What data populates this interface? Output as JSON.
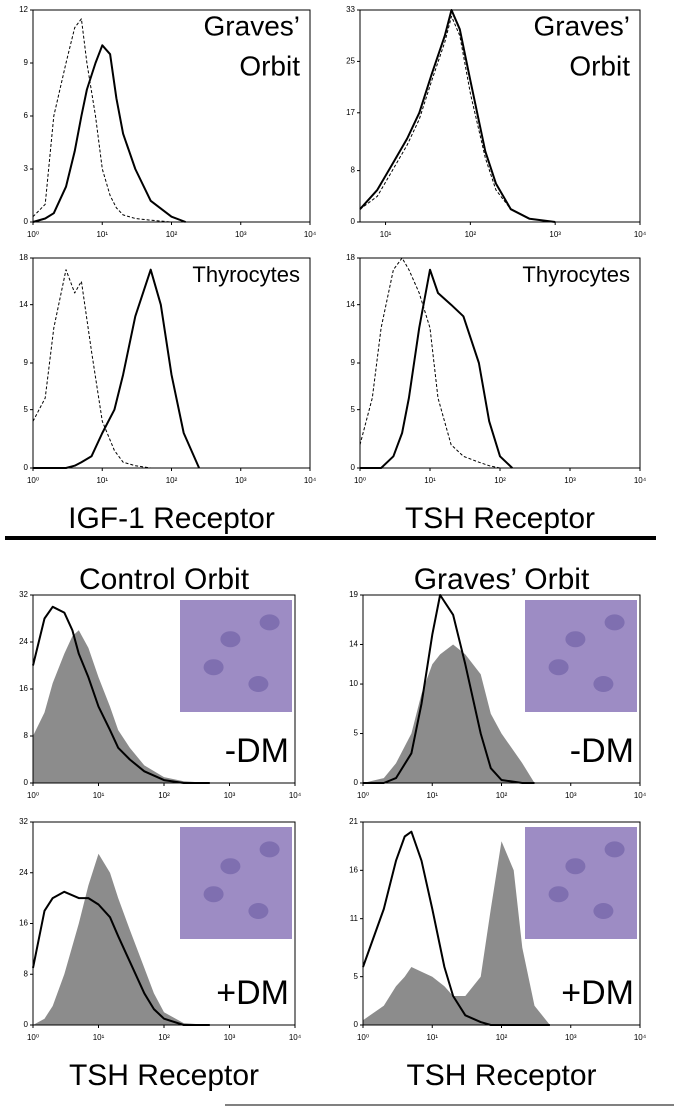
{
  "chart_data": [
    {
      "type": "line",
      "annotation": [
        "Graves’",
        "Orbit"
      ],
      "annotation_position": "top-right",
      "xlim": [
        1,
        10000
      ],
      "xscale": "log",
      "xticks": [
        {
          "value": 1,
          "label": "10⁰"
        },
        {
          "value": 10,
          "label": "10¹"
        },
        {
          "value": 100,
          "label": "10²"
        },
        {
          "value": 1000,
          "label": "10³"
        },
        {
          "value": 10000,
          "label": "10⁴"
        }
      ],
      "ylim": [
        0,
        12
      ],
      "yticks": [
        0,
        3,
        6,
        9,
        12
      ],
      "x": [
        1,
        1.5,
        2,
        3,
        4,
        5,
        6,
        8,
        10,
        13,
        16,
        20,
        30,
        50,
        100,
        160
      ],
      "series": [
        {
          "color": "#000000",
          "style": "dashed",
          "values": [
            0.3,
            1,
            6,
            9,
            11,
            11.5,
            9,
            6,
            3,
            1.5,
            0.8,
            0.4,
            0.2,
            0.1,
            0,
            0
          ]
        },
        {
          "color": "#000000",
          "style": "solid",
          "values": [
            0,
            0.2,
            0.5,
            2,
            4,
            6,
            7.5,
            9,
            10,
            9.5,
            7,
            5,
            3,
            1.2,
            0.3,
            0
          ]
        }
      ]
    },
    {
      "type": "line",
      "annotation": [
        "Graves’",
        "Orbit"
      ],
      "annotation_position": "top-right",
      "xlim": [
        5,
        10000
      ],
      "xscale": "log",
      "xticks": [
        {
          "value": 10,
          "label": "10¹"
        },
        {
          "value": 100,
          "label": "10²"
        },
        {
          "value": 1000,
          "label": "10³"
        },
        {
          "value": 10000,
          "label": "10⁴"
        }
      ],
      "ylim": [
        0,
        33
      ],
      "yticks": [
        0,
        8,
        17,
        25,
        33
      ],
      "x": [
        5,
        8,
        12,
        18,
        25,
        35,
        50,
        60,
        75,
        100,
        150,
        200,
        300,
        500,
        1000
      ],
      "series": [
        {
          "color": "#000000",
          "style": "dashed",
          "values": [
            2,
            4,
            8,
            12,
            16,
            22,
            28,
            32,
            29,
            20,
            10,
            5,
            2,
            0.5,
            0
          ]
        },
        {
          "color": "#000000",
          "style": "solid",
          "values": [
            2,
            5,
            9,
            13,
            17,
            23,
            29,
            33,
            30,
            22,
            11,
            6,
            2,
            0.5,
            0
          ]
        }
      ]
    },
    {
      "type": "line",
      "annotation": [
        "Thyrocytes"
      ],
      "annotation_position": "top-right",
      "xlabel": "IGF-1 Receptor",
      "xlim": [
        1,
        10000
      ],
      "xscale": "log",
      "xticks": [
        {
          "value": 1,
          "label": "10⁰"
        },
        {
          "value": 10,
          "label": "10¹"
        },
        {
          "value": 100,
          "label": "10²"
        },
        {
          "value": 1000,
          "label": "10³"
        },
        {
          "value": 10000,
          "label": "10⁴"
        }
      ],
      "ylim": [
        0,
        18
      ],
      "yticks": [
        0,
        5,
        9,
        14,
        18
      ],
      "x": [
        1,
        1.5,
        2,
        3,
        4,
        5,
        7,
        10,
        15,
        20,
        30,
        50,
        70,
        100,
        150,
        250
      ],
      "series": [
        {
          "color": "#000000",
          "style": "dashed",
          "values": [
            4,
            6,
            12,
            17,
            15,
            16,
            10,
            4,
            1.5,
            0.5,
            0.2,
            0,
            0,
            0,
            0,
            0
          ]
        },
        {
          "color": "#000000",
          "style": "solid",
          "values": [
            0,
            0,
            0,
            0,
            0.2,
            0.5,
            1,
            3,
            5,
            8,
            13,
            17,
            14,
            8,
            3,
            0
          ]
        }
      ]
    },
    {
      "type": "line",
      "annotation": [
        "Thyrocytes"
      ],
      "annotation_position": "top-right",
      "xlabel": "TSH Receptor",
      "xlim": [
        1,
        10000
      ],
      "xscale": "log",
      "xticks": [
        {
          "value": 1,
          "label": "10⁰"
        },
        {
          "value": 10,
          "label": "10¹"
        },
        {
          "value": 100,
          "label": "10²"
        },
        {
          "value": 1000,
          "label": "10³"
        },
        {
          "value": 10000,
          "label": "10⁴"
        }
      ],
      "ylim": [
        0,
        18
      ],
      "yticks": [
        0,
        5,
        9,
        14,
        18
      ],
      "x": [
        1,
        1.5,
        2,
        3,
        4,
        5,
        7,
        10,
        13,
        20,
        30,
        50,
        70,
        100,
        150
      ],
      "series": [
        {
          "color": "#000000",
          "style": "dashed",
          "values": [
            2,
            6,
            12,
            17,
            18,
            17,
            15,
            12,
            6,
            2,
            1,
            0.5,
            0.2,
            0,
            0
          ]
        },
        {
          "color": "#000000",
          "style": "solid",
          "values": [
            0,
            0,
            0,
            1,
            3,
            6,
            12,
            17,
            15,
            14,
            13,
            9,
            4,
            1,
            0
          ]
        }
      ]
    },
    {
      "type": "line",
      "title": "Control Orbit",
      "annotation": [
        "-DM"
      ],
      "annotation_position": "bottom-right",
      "inset_image": true,
      "xlim": [
        1,
        10000
      ],
      "xscale": "log",
      "xticks": [
        {
          "value": 1,
          "label": "10⁰"
        },
        {
          "value": 10,
          "label": "10¹"
        },
        {
          "value": 100,
          "label": "10²"
        },
        {
          "value": 1000,
          "label": "10³"
        },
        {
          "value": 10000,
          "label": "10⁴"
        }
      ],
      "ylim": [
        0,
        32
      ],
      "yticks": [
        0,
        8,
        16,
        24,
        32
      ],
      "x": [
        1,
        1.5,
        2,
        3,
        4,
        5,
        7,
        10,
        15,
        20,
        30,
        50,
        100,
        200,
        500
      ],
      "series": [
        {
          "color": "#8c8c8c",
          "style": "fill",
          "values": [
            8,
            12,
            17,
            22,
            25,
            26,
            23,
            18,
            13,
            9,
            6,
            3,
            1,
            0.3,
            0
          ]
        },
        {
          "color": "#000000",
          "style": "solid",
          "values": [
            20,
            28,
            30,
            29,
            26,
            22,
            18,
            13,
            9,
            6,
            4,
            2,
            0.5,
            0,
            0
          ]
        }
      ]
    },
    {
      "type": "line",
      "title": "Graves’ Orbit",
      "annotation": [
        "-DM"
      ],
      "annotation_position": "bottom-right",
      "inset_image": true,
      "xlim": [
        1,
        10000
      ],
      "xscale": "log",
      "xticks": [
        {
          "value": 1,
          "label": "10⁰"
        },
        {
          "value": 10,
          "label": "10¹"
        },
        {
          "value": 100,
          "label": "10²"
        },
        {
          "value": 1000,
          "label": "10³"
        },
        {
          "value": 10000,
          "label": "10⁴"
        }
      ],
      "ylim": [
        0,
        19
      ],
      "yticks": [
        0,
        5,
        10,
        14,
        19
      ],
      "x": [
        1,
        2,
        3,
        5,
        7,
        10,
        13,
        20,
        30,
        50,
        70,
        100,
        200,
        300
      ],
      "series": [
        {
          "color": "#8c8c8c",
          "style": "fill",
          "values": [
            0,
            0.5,
            2,
            5,
            9,
            12,
            13,
            14,
            13,
            11,
            7,
            5,
            2,
            0
          ]
        },
        {
          "color": "#000000",
          "style": "solid",
          "values": [
            0,
            0,
            0.5,
            3,
            8,
            15,
            19,
            17,
            12,
            5,
            1.5,
            0.3,
            0,
            0
          ]
        }
      ]
    },
    {
      "type": "line",
      "annotation": [
        "+DM"
      ],
      "annotation_position": "bottom-right",
      "inset_image": true,
      "xlabel": "TSH Receptor",
      "xlim": [
        1,
        10000
      ],
      "xscale": "log",
      "xticks": [
        {
          "value": 1,
          "label": "10⁰"
        },
        {
          "value": 10,
          "label": "10¹"
        },
        {
          "value": 100,
          "label": "10²"
        },
        {
          "value": 1000,
          "label": "10³"
        },
        {
          "value": 10000,
          "label": "10⁴"
        }
      ],
      "ylim": [
        0,
        32
      ],
      "yticks": [
        0,
        8,
        16,
        24,
        32
      ],
      "x": [
        1,
        1.5,
        2,
        3,
        5,
        7,
        10,
        15,
        20,
        30,
        50,
        70,
        100,
        200,
        500
      ],
      "series": [
        {
          "color": "#8c8c8c",
          "style": "fill",
          "values": [
            0,
            1,
            3,
            8,
            16,
            22,
            27,
            24,
            20,
            15,
            9,
            5,
            2,
            0.3,
            0
          ]
        },
        {
          "color": "#000000",
          "style": "solid",
          "values": [
            9,
            18,
            20,
            21,
            20,
            20,
            19,
            17,
            14,
            10,
            5,
            2.5,
            1,
            0,
            0
          ]
        }
      ]
    },
    {
      "type": "line",
      "annotation": [
        "+DM"
      ],
      "annotation_position": "bottom-right",
      "inset_image": true,
      "xlabel": "TSH Receptor",
      "xlim": [
        1,
        10000
      ],
      "xscale": "log",
      "xticks": [
        {
          "value": 1,
          "label": "10⁰"
        },
        {
          "value": 10,
          "label": "10¹"
        },
        {
          "value": 100,
          "label": "10²"
        },
        {
          "value": 1000,
          "label": "10³"
        },
        {
          "value": 10000,
          "label": "10⁴"
        }
      ],
      "ylim": [
        0,
        21
      ],
      "yticks": [
        0,
        5,
        11,
        16,
        21
      ],
      "x": [
        1,
        2,
        3,
        4,
        5,
        7,
        10,
        15,
        20,
        30,
        50,
        70,
        100,
        150,
        200,
        300,
        500
      ],
      "series": [
        {
          "color": "#8c8c8c",
          "style": "fill",
          "values": [
            0.5,
            2,
            4,
            5,
            6,
            5.5,
            5,
            4,
            3,
            3,
            5,
            12,
            19,
            16,
            8,
            2,
            0
          ]
        },
        {
          "color": "#000000",
          "style": "solid",
          "values": [
            6,
            12,
            17,
            19.5,
            20,
            17,
            12,
            6,
            3,
            1,
            0.3,
            0,
            0,
            0,
            0,
            0,
            0
          ]
        }
      ]
    }
  ]
}
